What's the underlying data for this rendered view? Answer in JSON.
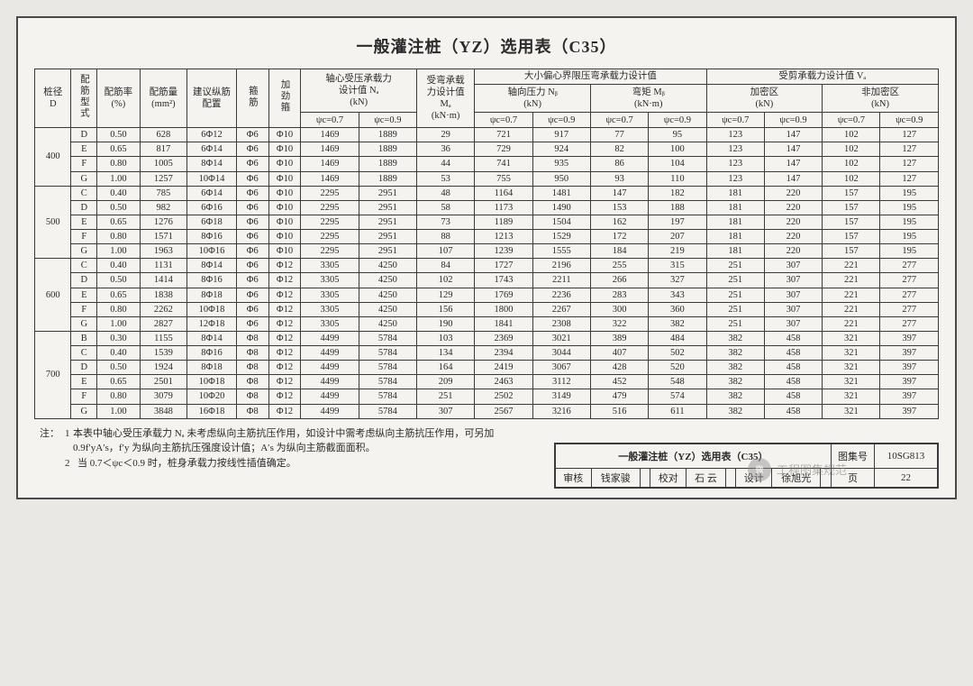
{
  "title": "一般灌注桩（YZ）选用表（C35）",
  "columns": {
    "c1": "桩径\nD",
    "c2": "配筋型式",
    "c3": "配筋率\n(%)",
    "c4": "配筋量\n(mm²)",
    "c5": "建议纵筋配置",
    "c6": "箍筋",
    "c7": "加劲箍",
    "g1": "轴心受压承载力\n设计值 Nₐ\n(kN)",
    "g1a": "ψc=0.7",
    "g1b": "ψc=0.9",
    "g2": "受弯承载\n力设计值\nMₐ\n(kN·m)",
    "g3": "大小偏心界限压弯承载力设计值",
    "g3a": "轴向压力 Nᵦ\n(kN)",
    "g3b": "弯矩 Mᵦ\n(kN·m)",
    "g4": "受剪承载力设计值 Vₐ",
    "g4a": "加密区\n(kN)",
    "g4b": "非加密区\n(kN)",
    "psi07": "ψc=0.7",
    "psi09": "ψc=0.9"
  },
  "groups": [
    {
      "dia": "400",
      "rows": [
        [
          "D",
          "0.50",
          "628",
          "6Φ12",
          "Φ6",
          "Φ10",
          "1469",
          "1889",
          "29",
          "721",
          "917",
          "77",
          "95",
          "123",
          "147",
          "102",
          "127"
        ],
        [
          "E",
          "0.65",
          "817",
          "6Φ14",
          "Φ6",
          "Φ10",
          "1469",
          "1889",
          "36",
          "729",
          "924",
          "82",
          "100",
          "123",
          "147",
          "102",
          "127"
        ],
        [
          "F",
          "0.80",
          "1005",
          "8Φ14",
          "Φ6",
          "Φ10",
          "1469",
          "1889",
          "44",
          "741",
          "935",
          "86",
          "104",
          "123",
          "147",
          "102",
          "127"
        ],
        [
          "G",
          "1.00",
          "1257",
          "10Φ14",
          "Φ6",
          "Φ10",
          "1469",
          "1889",
          "53",
          "755",
          "950",
          "93",
          "110",
          "123",
          "147",
          "102",
          "127"
        ]
      ]
    },
    {
      "dia": "500",
      "rows": [
        [
          "C",
          "0.40",
          "785",
          "6Φ14",
          "Φ6",
          "Φ10",
          "2295",
          "2951",
          "48",
          "1164",
          "1481",
          "147",
          "182",
          "181",
          "220",
          "157",
          "195"
        ],
        [
          "D",
          "0.50",
          "982",
          "6Φ16",
          "Φ6",
          "Φ10",
          "2295",
          "2951",
          "58",
          "1173",
          "1490",
          "153",
          "188",
          "181",
          "220",
          "157",
          "195"
        ],
        [
          "E",
          "0.65",
          "1276",
          "6Φ18",
          "Φ6",
          "Φ10",
          "2295",
          "2951",
          "73",
          "1189",
          "1504",
          "162",
          "197",
          "181",
          "220",
          "157",
          "195"
        ],
        [
          "F",
          "0.80",
          "1571",
          "8Φ16",
          "Φ6",
          "Φ10",
          "2295",
          "2951",
          "88",
          "1213",
          "1529",
          "172",
          "207",
          "181",
          "220",
          "157",
          "195"
        ],
        [
          "G",
          "1.00",
          "1963",
          "10Φ16",
          "Φ6",
          "Φ10",
          "2295",
          "2951",
          "107",
          "1239",
          "1555",
          "184",
          "219",
          "181",
          "220",
          "157",
          "195"
        ]
      ]
    },
    {
      "dia": "600",
      "rows": [
        [
          "C",
          "0.40",
          "1131",
          "8Φ14",
          "Φ6",
          "Φ12",
          "3305",
          "4250",
          "84",
          "1727",
          "2196",
          "255",
          "315",
          "251",
          "307",
          "221",
          "277"
        ],
        [
          "D",
          "0.50",
          "1414",
          "8Φ16",
          "Φ6",
          "Φ12",
          "3305",
          "4250",
          "102",
          "1743",
          "2211",
          "266",
          "327",
          "251",
          "307",
          "221",
          "277"
        ],
        [
          "E",
          "0.65",
          "1838",
          "8Φ18",
          "Φ6",
          "Φ12",
          "3305",
          "4250",
          "129",
          "1769",
          "2236",
          "283",
          "343",
          "251",
          "307",
          "221",
          "277"
        ],
        [
          "F",
          "0.80",
          "2262",
          "10Φ18",
          "Φ6",
          "Φ12",
          "3305",
          "4250",
          "156",
          "1800",
          "2267",
          "300",
          "360",
          "251",
          "307",
          "221",
          "277"
        ],
        [
          "G",
          "1.00",
          "2827",
          "12Φ18",
          "Φ6",
          "Φ12",
          "3305",
          "4250",
          "190",
          "1841",
          "2308",
          "322",
          "382",
          "251",
          "307",
          "221",
          "277"
        ]
      ]
    },
    {
      "dia": "700",
      "rows": [
        [
          "B",
          "0.30",
          "1155",
          "8Φ14",
          "Φ8",
          "Φ12",
          "4499",
          "5784",
          "103",
          "2369",
          "3021",
          "389",
          "484",
          "382",
          "458",
          "321",
          "397"
        ],
        [
          "C",
          "0.40",
          "1539",
          "8Φ16",
          "Φ8",
          "Φ12",
          "4499",
          "5784",
          "134",
          "2394",
          "3044",
          "407",
          "502",
          "382",
          "458",
          "321",
          "397"
        ],
        [
          "D",
          "0.50",
          "1924",
          "8Φ18",
          "Φ8",
          "Φ12",
          "4499",
          "5784",
          "164",
          "2419",
          "3067",
          "428",
          "520",
          "382",
          "458",
          "321",
          "397"
        ],
        [
          "E",
          "0.65",
          "2501",
          "10Φ18",
          "Φ8",
          "Φ12",
          "4499",
          "5784",
          "209",
          "2463",
          "3112",
          "452",
          "548",
          "382",
          "458",
          "321",
          "397"
        ],
        [
          "F",
          "0.80",
          "3079",
          "10Φ20",
          "Φ8",
          "Φ12",
          "4499",
          "5784",
          "251",
          "2502",
          "3149",
          "479",
          "574",
          "382",
          "458",
          "321",
          "397"
        ],
        [
          "G",
          "1.00",
          "3848",
          "16Φ18",
          "Φ8",
          "Φ12",
          "4499",
          "5784",
          "307",
          "2567",
          "3216",
          "516",
          "611",
          "382",
          "458",
          "321",
          "397"
        ]
      ]
    }
  ],
  "notes": {
    "label": "注：",
    "items": [
      "本表中轴心受压承载力 Nₐ 未考虑纵向主筋抗压作用，如设计中需考虑纵向主筋抗压作用，可另加 0.9f′yA′s，f′y 为纵向主筋抗压强度设计值；A′s 为纵向主筋截面面积。",
      "当 0.7＜ψc＜0.9 时，桩身承载力按线性插值确定。"
    ]
  },
  "footerBox": {
    "title": "一般灌注桩（YZ）选用表（C35）",
    "atlasLabel": "图集号",
    "atlasNo": "10SG813",
    "row2": [
      "审核",
      "钱家骏",
      "",
      "校对",
      "石  云",
      "",
      "设计",
      "徐旭光",
      ""
    ],
    "pageLabel": "页",
    "pageNo": "22"
  },
  "watermark": "工程图集规范",
  "style": {
    "page_bg": "#f4f3ef",
    "body_bg": "#e9e8e4",
    "border": "#3a3a3a",
    "text": "#2a2a2a",
    "title_fontsize": 18,
    "cell_fontsize": 10.5
  }
}
